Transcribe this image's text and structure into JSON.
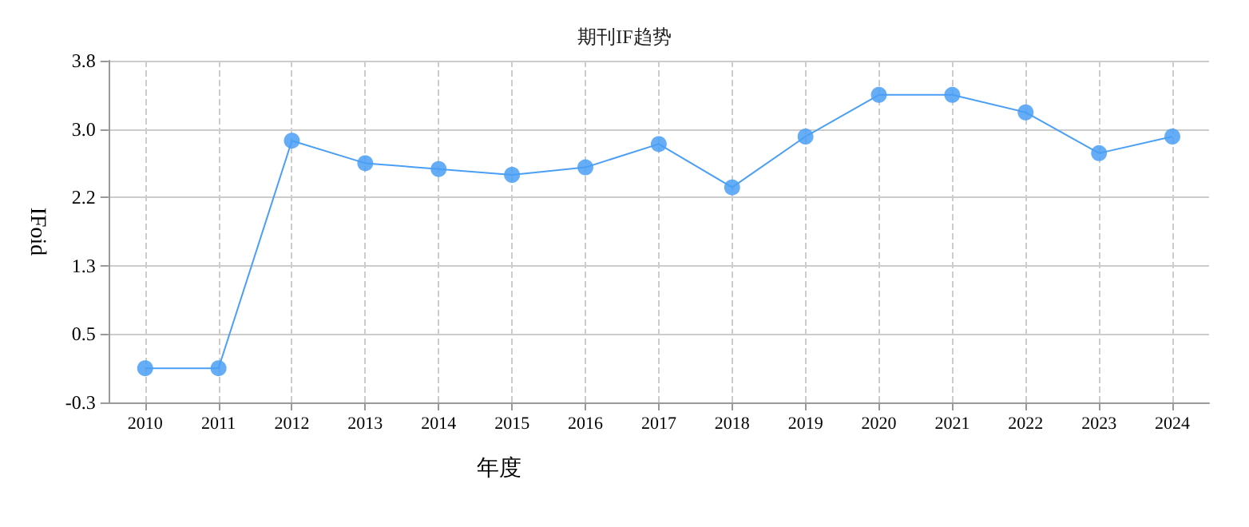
{
  "chart_data": {
    "type": "line",
    "title": "期刊IF趋势",
    "xlabel": "年度",
    "ylabel": "IFoid",
    "x": [
      2010,
      2011,
      2012,
      2013,
      2014,
      2015,
      2016,
      2017,
      2018,
      2019,
      2020,
      2021,
      2022,
      2023,
      2024
    ],
    "series": [
      {
        "color": "#4a9ff5",
        "values": [
          0.11,
          0.11,
          2.84,
          2.57,
          2.5,
          2.43,
          2.52,
          2.8,
          2.28,
          2.89,
          3.39,
          3.39,
          3.18,
          2.69,
          2.89
        ]
      }
    ],
    "xlim": [
      2009.5,
      2024.5
    ],
    "xticks": [
      2010,
      2011,
      2012,
      2013,
      2014,
      2015,
      2016,
      2017,
      2018,
      2019,
      2020,
      2021,
      2022,
      2023,
      2024
    ],
    "ylim": [
      -0.3,
      3.8
    ],
    "yticks": [
      -0.3,
      {
        "value": 0.52,
        "label": "0.5"
      },
      {
        "value": 1.34,
        "label": "1.3"
      },
      {
        "value": 2.16,
        "label": "2.2"
      },
      {
        "value": 2.98,
        "label": "3.0"
      },
      3.8
    ],
    "grid": true,
    "marker": "circle"
  }
}
